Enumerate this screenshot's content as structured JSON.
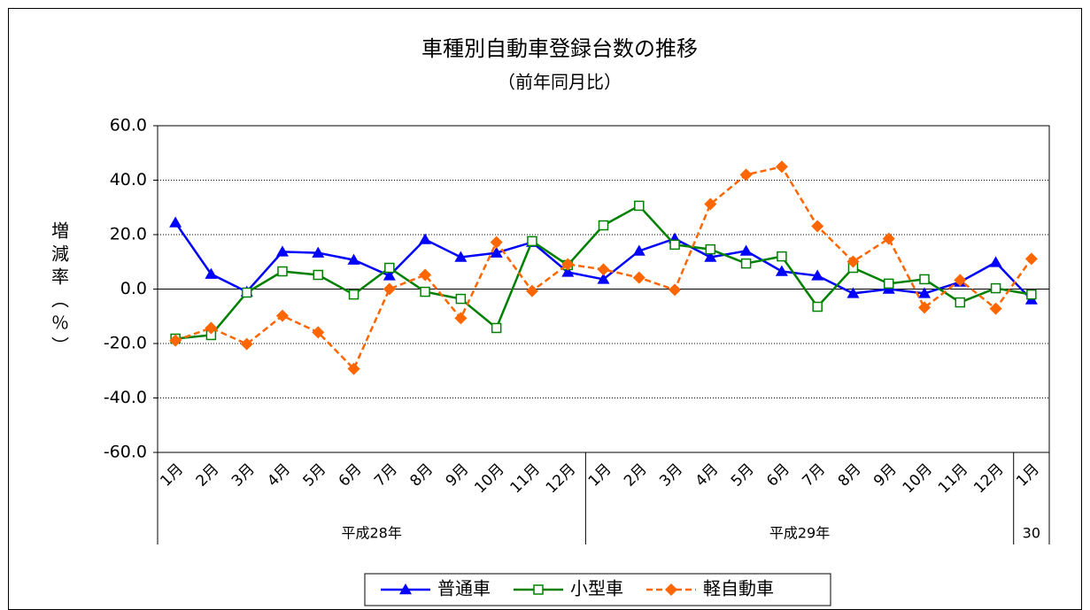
{
  "chart_data": {
    "type": "line",
    "title": "車種別自動車登録台数の推移",
    "subtitle": "（前年同月比）",
    "y_label": "増減率（％）",
    "categories": [
      "1月",
      "2月",
      "3月",
      "4月",
      "5月",
      "6月",
      "7月",
      "8月",
      "9月",
      "10月",
      "11月",
      "12月",
      "1月",
      "2月",
      "3月",
      "4月",
      "5月",
      "6月",
      "7月",
      "8月",
      "9月",
      "10月",
      "11月",
      "12月",
      "1月"
    ],
    "x_groups": [
      "平成28年",
      "平成29年",
      "30"
    ],
    "ylim": [
      -60,
      60
    ],
    "yticks": [
      {
        "value": -60,
        "label": "-60.0"
      },
      {
        "value": -40,
        "label": "-40.0"
      },
      {
        "value": -20,
        "label": "-20.0"
      },
      {
        "value": 0,
        "label": "0.0"
      },
      {
        "value": 20,
        "label": "20.0"
      },
      {
        "value": 40,
        "label": "40.0"
      },
      {
        "value": 60,
        "label": "60.0"
      }
    ],
    "grid": true,
    "legend": "bottom",
    "series": [
      {
        "name": "普通車",
        "color": "#0000ff",
        "marker": "triangle",
        "dashed": false,
        "values": [
          24.4,
          5.5,
          -1.0,
          13.7,
          13.3,
          10.7,
          4.9,
          18.2,
          11.7,
          13.3,
          17.2,
          6.2,
          3.6,
          14.0,
          18.5,
          11.7,
          14.0,
          6.5,
          4.9,
          -1.6,
          0.0,
          -1.6,
          2.6,
          9.8,
          -3.9
        ]
      },
      {
        "name": "小型車",
        "color": "#008000",
        "marker": "square",
        "dashed": false,
        "values": [
          -18.2,
          -16.9,
          -1.3,
          6.5,
          5.2,
          -2.0,
          7.8,
          -1.0,
          -3.6,
          -14.3,
          17.6,
          8.8,
          23.4,
          30.6,
          16.3,
          14.6,
          9.4,
          12.0,
          -6.5,
          7.8,
          2.0,
          3.6,
          -4.9,
          0.3,
          -2.0
        ]
      },
      {
        "name": "軽自動車",
        "color": "#ff6600",
        "marker": "diamond",
        "dashed": true,
        "values": [
          -18.9,
          -14.3,
          -20.2,
          -9.8,
          -15.9,
          -29.3,
          0.0,
          5.2,
          -10.7,
          17.2,
          -0.7,
          9.1,
          7.2,
          4.2,
          -0.3,
          31.2,
          42.0,
          44.9,
          23.1,
          10.1,
          18.5,
          -6.8,
          3.3,
          -7.2,
          11.1
        ]
      }
    ]
  }
}
